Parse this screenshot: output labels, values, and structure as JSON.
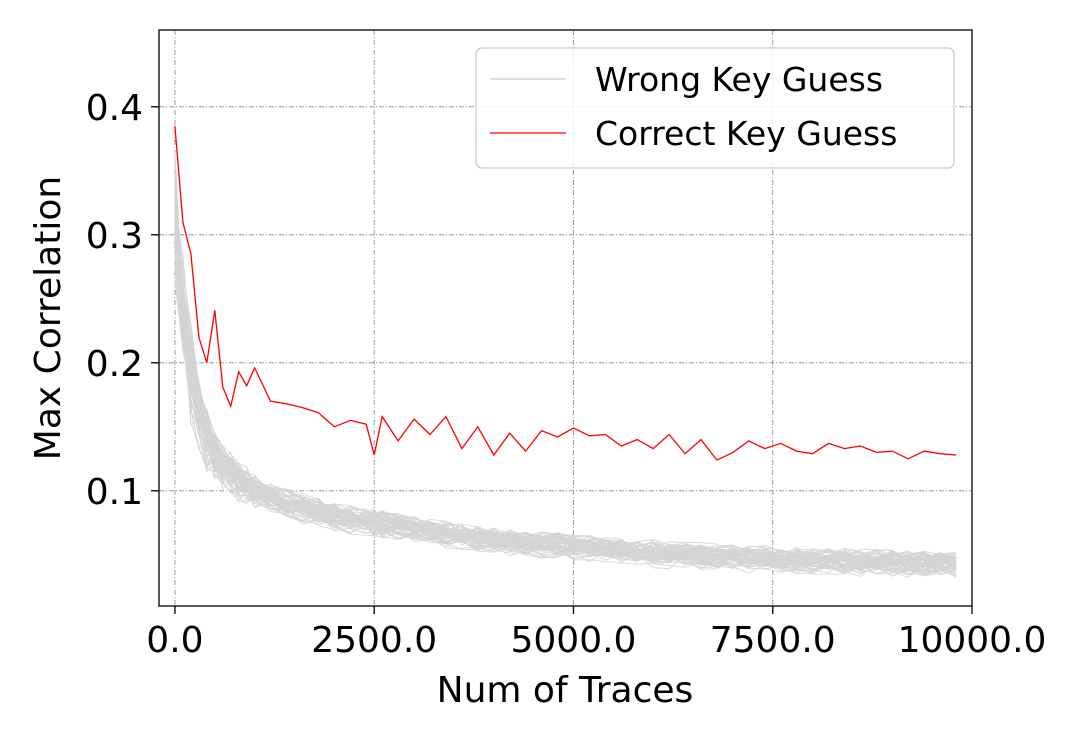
{
  "chart_data": {
    "type": "line",
    "xlabel": "Num of Traces",
    "ylabel": "Max Correlation",
    "xlim": [
      -200,
      10000
    ],
    "ylim": [
      0.01,
      0.46
    ],
    "x_ticks": [
      0,
      2500,
      5000,
      7500,
      10000
    ],
    "x_tick_labels": [
      "0.0",
      "2500.0",
      "5000.0",
      "7500.0",
      "10000.0"
    ],
    "y_ticks": [
      0.1,
      0.2,
      0.3,
      0.4
    ],
    "y_tick_labels": [
      "0.1",
      "0.2",
      "0.3",
      "0.4"
    ],
    "grid": true,
    "legend_position": "top-right",
    "x": [
      0,
      100,
      200,
      300,
      400,
      500,
      600,
      700,
      800,
      900,
      1000,
      1200,
      1400,
      1600,
      1800,
      2000,
      2200,
      2400,
      2500,
      2600,
      2800,
      3000,
      3200,
      3400,
      3600,
      3800,
      4000,
      4200,
      4400,
      4600,
      4800,
      5000,
      5200,
      5400,
      5600,
      5800,
      6000,
      6200,
      6400,
      6600,
      6800,
      7000,
      7200,
      7400,
      7600,
      7800,
      8000,
      8200,
      8400,
      8600,
      8800,
      9000,
      9200,
      9400,
      9600,
      9800
    ],
    "series": [
      {
        "name": "Correct Key Guess",
        "color": "#ff0000",
        "values": [
          0.385,
          0.31,
          0.285,
          0.22,
          0.2,
          0.241,
          0.181,
          0.166,
          0.193,
          0.182,
          0.196,
          0.17,
          0.168,
          0.165,
          0.161,
          0.15,
          0.155,
          0.152,
          0.128,
          0.158,
          0.139,
          0.156,
          0.144,
          0.158,
          0.133,
          0.15,
          0.128,
          0.145,
          0.131,
          0.147,
          0.142,
          0.149,
          0.143,
          0.144,
          0.135,
          0.14,
          0.133,
          0.144,
          0.129,
          0.14,
          0.124,
          0.13,
          0.139,
          0.133,
          0.137,
          0.131,
          0.129,
          0.137,
          0.133,
          0.135,
          0.13,
          0.131,
          0.125,
          0.131,
          0.129,
          0.128
        ]
      },
      {
        "name": "Wrong Key Guess",
        "color": "#d3d3d3",
        "count": 64,
        "values_mean": [
          0.31,
          0.24,
          0.19,
          0.16,
          0.14,
          0.128,
          0.12,
          0.114,
          0.108,
          0.104,
          0.1,
          0.094,
          0.09,
          0.086,
          0.083,
          0.08,
          0.078,
          0.076,
          0.075,
          0.074,
          0.072,
          0.07,
          0.068,
          0.066,
          0.064,
          0.062,
          0.061,
          0.06,
          0.059,
          0.058,
          0.057,
          0.056,
          0.055,
          0.054,
          0.053,
          0.052,
          0.051,
          0.05,
          0.05,
          0.049,
          0.048,
          0.048,
          0.047,
          0.047,
          0.046,
          0.046,
          0.045,
          0.045,
          0.045,
          0.044,
          0.044,
          0.044,
          0.043,
          0.043,
          0.043,
          0.043
        ],
        "values_spread": [
          0.07,
          0.06,
          0.05,
          0.035,
          0.03,
          0.025,
          0.022,
          0.02,
          0.019,
          0.018,
          0.017,
          0.016,
          0.015,
          0.015,
          0.015,
          0.015,
          0.014,
          0.014,
          0.014,
          0.014,
          0.013,
          0.013,
          0.013,
          0.013,
          0.013,
          0.013,
          0.013,
          0.013,
          0.013,
          0.013,
          0.013,
          0.013,
          0.013,
          0.013,
          0.013,
          0.013,
          0.013,
          0.013,
          0.013,
          0.013,
          0.013,
          0.013,
          0.013,
          0.013,
          0.013,
          0.013,
          0.013,
          0.013,
          0.013,
          0.013,
          0.013,
          0.013,
          0.013,
          0.013,
          0.013,
          0.013
        ]
      }
    ]
  },
  "legend": {
    "wrong_label": "Wrong Key Guess",
    "correct_label": "Correct Key Guess"
  }
}
